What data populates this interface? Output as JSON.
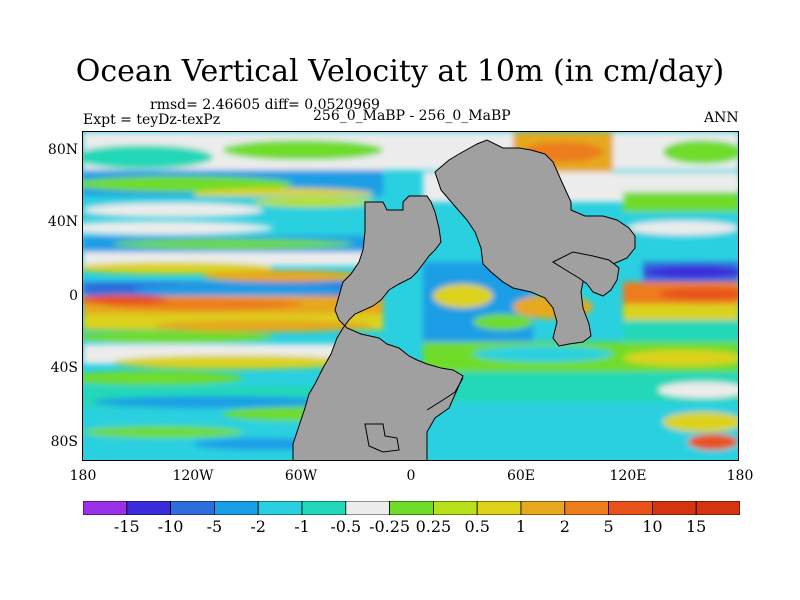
{
  "map": {
    "title": "Ocean Vertical Velocity at 10m (in cm/day)",
    "stats": "rmsd= 2.46605 diff= 0.0520969",
    "experiment": "Expt = teyDz-texPz",
    "case": "256_0_MaBP - 256_0_MaBP",
    "season": "ANN",
    "lat_labels": [
      "80N",
      "40N",
      "0",
      "40S",
      "80S"
    ],
    "lon_labels": [
      "180",
      "120W",
      "60W",
      "0",
      "60E",
      "120E",
      "180"
    ],
    "land_color": "#a0a0a0"
  },
  "colorbar": {
    "colors": [
      "#9b30e8",
      "#3a2bdb",
      "#2e6ddc",
      "#1a9ee6",
      "#2ad0e0",
      "#22d8b8",
      "#ececec",
      "#6fdc2a",
      "#b8e01a",
      "#dcd21a",
      "#e6a81c",
      "#ec7d1a",
      "#e8521a",
      "#d4340f"
    ],
    "labels": [
      "-15",
      "-10",
      "-5",
      "-2",
      "-1",
      "-0.5",
      "-0.25",
      "0.25",
      "0.5",
      "1",
      "2",
      "5",
      "10",
      "15"
    ]
  }
}
